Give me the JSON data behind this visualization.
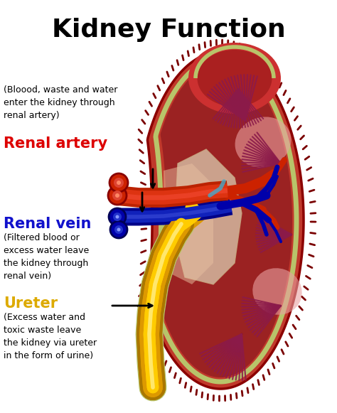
{
  "title": "Kidney Function",
  "title_fontsize": 26,
  "title_fontweight": "bold",
  "background_color": "#ffffff",
  "labels": {
    "renal_artery_label": "Renal artery",
    "renal_artery_color": "#dd0000",
    "renal_artery_desc": "(Bloood, waste and water\nenter the kidney through\nrenal artery)",
    "renal_vein_label": "Renal vein",
    "renal_vein_color": "#1111cc",
    "renal_vein_desc": "(Filtered blood or\nexcess water leave\nthe kidney through\nrenal vein)",
    "ureter_label": "Ureter",
    "ureter_color": "#ddaa00",
    "ureter_desc": "(Excess water and\ntoxic waste leave\nthe kidney via ureter\nin the form of urine)"
  }
}
